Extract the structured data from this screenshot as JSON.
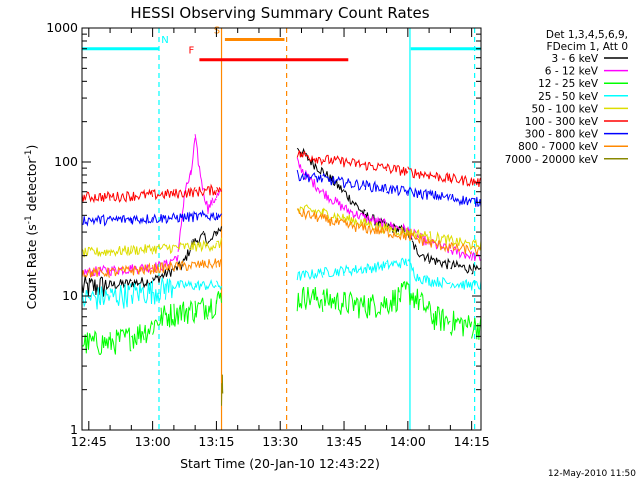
{
  "chart_data": {
    "type": "line",
    "title": "HESSI Observing Summary Count Rates",
    "xlabel": "Start Time (20-Jan-10 12:43:22)",
    "ylabel_main": "Count Rate (s",
    "ylabel_sup1": "-1",
    "ylabel_mid": " detector",
    "ylabel_sup2": "-1",
    "ylabel_end": ")",
    "footer": "12-May-2010 11:50",
    "x_unit": "minutes of day",
    "xlim": [
      763.4,
      857.2
    ],
    "ylim": [
      1,
      1000
    ],
    "y_scale": "log",
    "x_ticks": [
      {
        "label": "12:45",
        "value": 765
      },
      {
        "label": "13:00",
        "value": 780
      },
      {
        "label": "13:15",
        "value": 795
      },
      {
        "label": "13:30",
        "value": 810
      },
      {
        "label": "13:45",
        "value": 825
      },
      {
        "label": "14:00",
        "value": 840
      },
      {
        "label": "14:15",
        "value": 855
      }
    ],
    "y_ticks": [
      {
        "label": "1",
        "value": 1
      },
      {
        "label": "10",
        "value": 10
      },
      {
        "label": "100",
        "value": 100
      },
      {
        "label": "1000",
        "value": 1000
      }
    ],
    "legend": {
      "position": "right",
      "header": [
        "Det 1,3,4,5,6,9,",
        "FDecim 1, Att 0"
      ]
    },
    "series": [
      {
        "name": "3 - 6 keV",
        "color": "#000000",
        "x": [
          763.4,
          775,
          780,
          782,
          787,
          789.5,
          792,
          793.5,
          795,
          796.2,
          796.5,
          813.7,
          814,
          816,
          820,
          825,
          830,
          835,
          840,
          841,
          842,
          845,
          850,
          855,
          857.2
        ],
        "y": [
          11.5,
          12.5,
          13,
          14,
          17,
          25,
          28,
          25,
          30,
          32,
          null,
          null,
          130,
          110,
          85,
          60,
          40,
          33,
          30,
          25,
          22,
          19,
          17,
          16,
          15
        ]
      },
      {
        "name": "6 - 12 keV",
        "color": "#ff00ff",
        "x": [
          763.4,
          775,
          780,
          783,
          786,
          787.5,
          789,
          790,
          791,
          792,
          793,
          794,
          795,
          796.2,
          796.5,
          813.7,
          814,
          816,
          820,
          825,
          830,
          835,
          840,
          842,
          845,
          850,
          855,
          857.2
        ],
        "y": [
          15,
          16,
          16.5,
          17,
          20,
          60,
          80,
          150,
          90,
          60,
          45,
          50,
          55,
          60,
          null,
          null,
          100,
          80,
          60,
          45,
          38,
          34,
          31,
          28,
          25,
          22,
          20,
          19
        ]
      },
      {
        "name": "12 - 25 keV",
        "color": "#00ff00",
        "x": [
          763.4,
          770,
          775,
          778,
          780,
          782,
          785,
          790,
          793,
          795,
          796.2,
          796.5,
          813.7,
          814,
          816,
          820,
          825,
          830,
          835,
          838,
          840,
          843,
          846,
          850,
          855,
          857.2
        ],
        "y": [
          4.5,
          4.5,
          5,
          5.5,
          6,
          7,
          7.5,
          8,
          8.5,
          9,
          10,
          null,
          null,
          9.5,
          10,
          9.5,
          9,
          8.5,
          9,
          10,
          11,
          9,
          7,
          6.5,
          6,
          6
        ]
      },
      {
        "name": "25 - 50 keV",
        "color": "#00ffff",
        "x": [
          763.4,
          770,
          775,
          780,
          783,
          785,
          790,
          795,
          796.2,
          796.5,
          813.7,
          814,
          820,
          825,
          830,
          835,
          840,
          842,
          845,
          850,
          855,
          857.2
        ],
        "y": [
          9.5,
          10,
          10.5,
          11,
          11.5,
          12,
          12,
          12,
          12,
          null,
          null,
          14,
          15,
          15.5,
          16,
          17,
          18,
          14,
          13,
          12.5,
          12,
          12
        ]
      },
      {
        "name": "50 - 100 keV",
        "color": "#dddd00",
        "x": [
          763.4,
          770,
          775,
          780,
          785,
          790,
          795,
          796.2,
          796.5,
          813.7,
          814,
          820,
          825,
          830,
          835,
          840,
          845,
          850,
          855,
          857.2
        ],
        "y": [
          21,
          21.5,
          22,
          22.5,
          23,
          23.5,
          24,
          25,
          null,
          null,
          45,
          42,
          38,
          35,
          32,
          30,
          28,
          26,
          24,
          24
        ]
      },
      {
        "name": "100 - 300 keV",
        "color": "#ff0000",
        "x": [
          763.4,
          770,
          775,
          780,
          785,
          790,
          795,
          796.2,
          796.5,
          813.7,
          814,
          820,
          825,
          830,
          835,
          840,
          845,
          850,
          855,
          857.2
        ],
        "y": [
          55,
          55,
          56,
          57,
          58,
          60,
          62,
          65,
          null,
          null,
          115,
          105,
          100,
          95,
          90,
          85,
          80,
          75,
          72,
          70
        ]
      },
      {
        "name": "300 - 800 keV",
        "color": "#0000ff",
        "x": [
          763.4,
          770,
          775,
          780,
          785,
          790,
          795,
          796.2,
          796.5,
          813.7,
          814,
          820,
          825,
          830,
          835,
          840,
          845,
          850,
          855,
          857.2
        ],
        "y": [
          37,
          37,
          37.5,
          38,
          38.5,
          39,
          40,
          41,
          null,
          null,
          80,
          75,
          70,
          67,
          63,
          60,
          57,
          54,
          51,
          50
        ]
      },
      {
        "name": "800 - 7000 keV",
        "color": "#ff8800",
        "x": [
          763.4,
          770,
          775,
          780,
          785,
          790,
          795,
          796.2,
          796.5,
          813.7,
          814,
          820,
          825,
          830,
          835,
          840,
          845,
          850,
          855,
          857.2
        ],
        "y": [
          15,
          15,
          15.5,
          16,
          16.5,
          17,
          17.5,
          18,
          null,
          null,
          42,
          38,
          34,
          32,
          30,
          28,
          25,
          23,
          22,
          21
        ]
      },
      {
        "name": "7000 - 20000 keV",
        "color": "#888800",
        "x": [
          796.2,
          796.4,
          796.5
        ],
        "y": [
          1.8,
          2.6,
          1.8
        ]
      }
    ],
    "bars": [
      {
        "label": "N",
        "color": "#00ffff",
        "y": 700,
        "segments": [
          [
            763.4,
            781.5
          ],
          [
            840.7,
            857.2
          ]
        ]
      },
      {
        "label": "S",
        "color": "#ff8800",
        "y": 820,
        "segments": [
          [
            797,
            811
          ]
        ]
      },
      {
        "label": "F",
        "color": "#ff0000",
        "y": 580,
        "segments": [
          [
            791,
            826
          ]
        ]
      }
    ],
    "vlines": [
      {
        "x": 781.5,
        "color": "#00ffff",
        "style": "dashed"
      },
      {
        "x": 796.2,
        "color": "#ff8800",
        "style": "solid"
      },
      {
        "x": 811.5,
        "color": "#ff8800",
        "style": "dashed"
      },
      {
        "x": 840.5,
        "color": "#00ffff",
        "style": "solid"
      },
      {
        "x": 855.7,
        "color": "#00ffff",
        "style": "dashed"
      }
    ]
  }
}
